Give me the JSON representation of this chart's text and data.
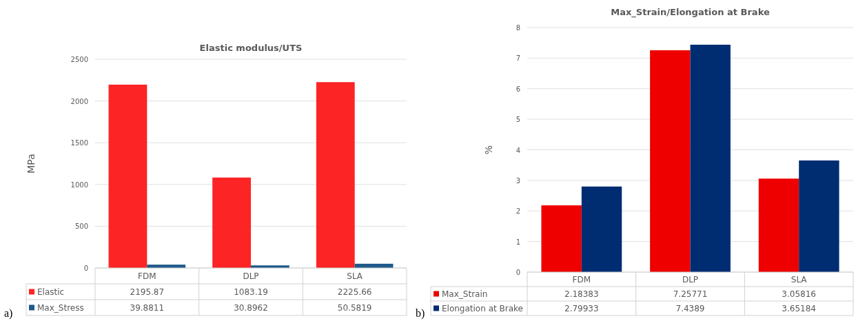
{
  "chart_data": [
    {
      "type": "bar",
      "title": "Elastic modulus/UTS",
      "ylabel": "MPa",
      "categories": [
        "FDM",
        "DLP",
        "SLA"
      ],
      "ylim": [
        0,
        2500
      ],
      "yticks": [
        0,
        500,
        1000,
        1500,
        2000,
        2500
      ],
      "grid": "y",
      "legend": "bottom",
      "data_labels": true,
      "annotations": [
        "a)"
      ],
      "series": [
        {
          "name": "Elastic",
          "color": "#fc2424",
          "values": [
            2195.87,
            1083.19,
            2225.66
          ]
        },
        {
          "name": "Max_Stress",
          "color": "#1f5a8a",
          "values": [
            39.8811,
            30.8962,
            50.5819
          ]
        }
      ]
    },
    {
      "type": "bar",
      "title": "Max_Strain/Elongation at Brake",
      "ylabel": "%",
      "categories": [
        "FDM",
        "DLP",
        "SLA"
      ],
      "ylim": [
        0,
        8
      ],
      "yticks": [
        0,
        1,
        2,
        3,
        4,
        5,
        6,
        7,
        8
      ],
      "grid": "y",
      "legend": "bottom",
      "data_labels": true,
      "annotations": [
        "b)"
      ],
      "series": [
        {
          "name": "Max_Strain",
          "color": "#ee0000",
          "values": [
            2.18383,
            7.25771,
            3.05816
          ]
        },
        {
          "name": "Elongation at Brake",
          "color": "#002d72",
          "values": [
            2.79933,
            7.4389,
            3.65184
          ]
        }
      ]
    }
  ]
}
